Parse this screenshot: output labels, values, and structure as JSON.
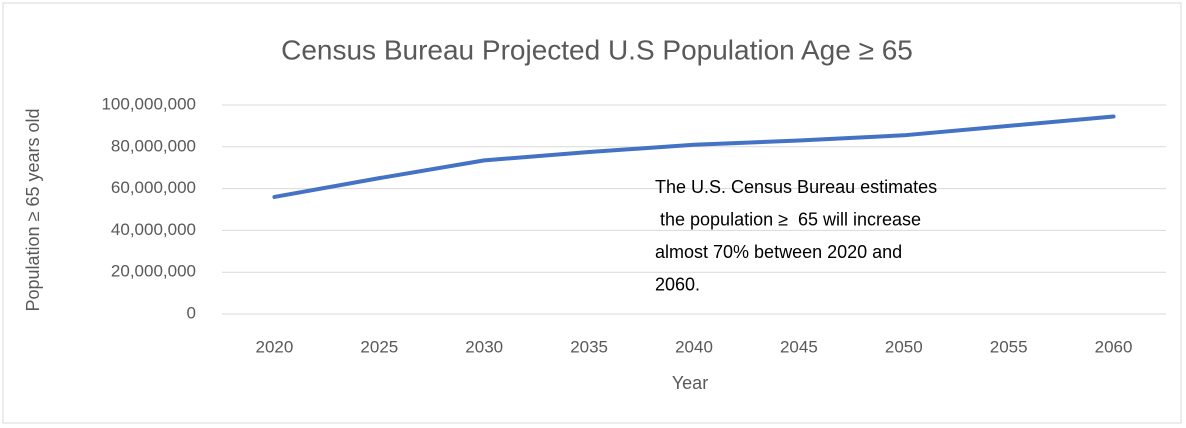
{
  "chart_data": {
    "type": "line",
    "title": "Census Bureau Projected U.S Population Age ≥ 65",
    "x_label": "Year",
    "y_label": "Population ≥ 65 years old",
    "categories": [
      "2020",
      "2025",
      "2030",
      "2035",
      "2040",
      "2045",
      "2050",
      "2055",
      "2060"
    ],
    "series": [
      {
        "name": "Population ≥ 65",
        "color": "#4472c4",
        "values": [
          56000000,
          65000000,
          73500000,
          77500000,
          81000000,
          83000000,
          85500000,
          90000000,
          94500000
        ]
      }
    ],
    "ylim": [
      0,
      100000000
    ],
    "yticks": [
      0,
      {
        "value": 20000000,
        "label": "20,000,000"
      },
      {
        "value": 40000000,
        "label": "40,000,000"
      },
      {
        "value": 60000000,
        "label": "60,000,000"
      },
      {
        "value": 80000000,
        "label": "80,000,000"
      },
      {
        "value": 100000000,
        "label": "100,000,000"
      }
    ],
    "grid": true,
    "annotation": [
      "The U.S. Census Bureau estimates",
      " the population ≥  65 will increase",
      "almost 70% between 2020 and",
      "2060."
    ]
  }
}
